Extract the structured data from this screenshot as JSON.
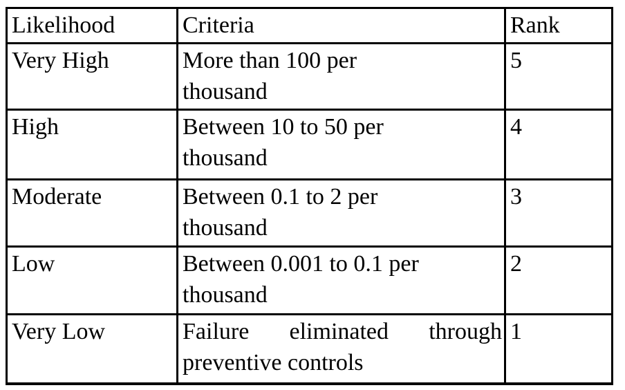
{
  "table": {
    "title": "likelihood-ranking-table",
    "headers": [
      "Likelihood",
      "Criteria",
      "Rank"
    ],
    "rows": [
      {
        "likelihood": "Very High",
        "criteria_line1": "More than 100 per",
        "criteria_line2": "thousand",
        "rank": "5"
      },
      {
        "likelihood": "High",
        "criteria_line1": "Between 10 to 50 per",
        "criteria_line2": "thousand",
        "rank": "4"
      },
      {
        "likelihood": "Moderate",
        "criteria_line1": "Between 0.1 to 2 per",
        "criteria_line2": "thousand",
        "rank": "3"
      },
      {
        "likelihood": "Low",
        "criteria_line1": "Between 0.001 to 0.1 per",
        "criteria_line2": "thousand",
        "rank": "2"
      },
      {
        "likelihood": "Very Low",
        "criteria_line1": "Failure eliminated through",
        "criteria_line2": "preventive controls",
        "rank": "1"
      }
    ],
    "colors": {
      "border": "#000000",
      "text": "#000000",
      "background": "#ffffff"
    }
  }
}
